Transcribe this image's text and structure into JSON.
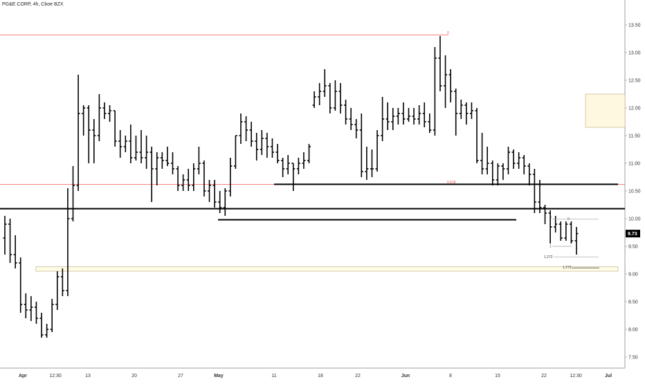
{
  "header": {
    "title": "PG&E CORP, 4h, Cboe BZX"
  },
  "chart_data": {
    "type": "ohlc",
    "ylim": [
      7.3,
      13.95
    ],
    "price_axis": {
      "ticks": [
        "7.50",
        "8.00",
        "8.50",
        "9.00",
        "9.50",
        "10.00",
        "10.50",
        "11.00",
        "11.50",
        "12.00",
        "12.50",
        "13.00",
        "13.50"
      ],
      "current_price_label": "9.73",
      "current_price": 9.73
    },
    "time_axis": {
      "labels": [
        "Apr",
        "12:30",
        "13",
        "20",
        "27",
        "May",
        "11",
        "18",
        "22",
        "Jun",
        "8",
        "15",
        "22",
        "12:30",
        "Jul"
      ],
      "bold_labels": [
        "Apr",
        "May",
        "Jun",
        "Jul"
      ]
    },
    "bars": [
      [
        9.65,
        10.05,
        9.35,
        9.9
      ],
      [
        9.9,
        10.0,
        9.2,
        9.35
      ],
      [
        9.35,
        9.7,
        9.1,
        9.2
      ],
      [
        9.2,
        9.3,
        8.3,
        8.45
      ],
      [
        8.45,
        8.65,
        8.2,
        8.35
      ],
      [
        8.35,
        8.6,
        8.15,
        8.4
      ],
      [
        8.4,
        8.5,
        8.1,
        8.2
      ],
      [
        8.2,
        8.3,
        7.85,
        7.9
      ],
      [
        7.9,
        8.1,
        7.85,
        8.0
      ],
      [
        8.0,
        8.55,
        7.95,
        8.45
      ],
      [
        8.45,
        9.05,
        8.35,
        8.95
      ],
      [
        8.95,
        9.1,
        8.6,
        8.7
      ],
      [
        8.7,
        10.55,
        8.6,
        10.0
      ],
      [
        10.0,
        10.95,
        9.95,
        10.6
      ],
      [
        10.6,
        12.6,
        10.5,
        11.9
      ],
      [
        11.9,
        12.05,
        11.5,
        12.0
      ],
      [
        12.0,
        12.05,
        11.0,
        11.6
      ],
      [
        11.6,
        11.8,
        11.0,
        11.5
      ],
      [
        11.5,
        12.25,
        11.4,
        12.0
      ],
      [
        12.0,
        12.1,
        11.8,
        11.9
      ],
      [
        11.9,
        12.05,
        11.75,
        11.95
      ],
      [
        11.95,
        11.95,
        11.3,
        11.4
      ],
      [
        11.4,
        11.6,
        11.1,
        11.3
      ],
      [
        11.3,
        11.5,
        11.2,
        11.4
      ],
      [
        11.4,
        11.7,
        11.0,
        11.1
      ],
      [
        11.1,
        11.5,
        11.05,
        11.2
      ],
      [
        11.2,
        11.6,
        11.0,
        11.1
      ],
      [
        11.1,
        11.5,
        10.9,
        11.2
      ],
      [
        11.2,
        11.3,
        10.3,
        10.9
      ],
      [
        10.9,
        11.2,
        10.6,
        11.1
      ],
      [
        11.1,
        11.2,
        10.9,
        11.05
      ],
      [
        11.05,
        11.3,
        10.95,
        11.0
      ],
      [
        11.0,
        11.2,
        10.8,
        10.9
      ],
      [
        10.9,
        10.95,
        10.5,
        10.6
      ],
      [
        10.6,
        10.8,
        10.5,
        10.7
      ],
      [
        10.7,
        10.9,
        10.5,
        10.6
      ],
      [
        10.6,
        11.0,
        10.5,
        10.9
      ],
      [
        10.9,
        11.3,
        10.8,
        11.0
      ],
      [
        11.0,
        11.05,
        10.4,
        10.5
      ],
      [
        10.5,
        10.7,
        10.3,
        10.6
      ],
      [
        10.6,
        10.7,
        10.2,
        10.3
      ],
      [
        10.3,
        10.5,
        10.1,
        10.2
      ],
      [
        10.2,
        10.55,
        10.05,
        10.5
      ],
      [
        10.5,
        11.1,
        10.4,
        10.95
      ],
      [
        10.95,
        11.5,
        10.9,
        11.5
      ],
      [
        11.5,
        11.9,
        11.35,
        11.75
      ],
      [
        11.75,
        11.85,
        11.4,
        11.6
      ],
      [
        11.6,
        11.75,
        11.3,
        11.4
      ],
      [
        11.4,
        11.55,
        11.05,
        11.25
      ],
      [
        11.25,
        11.6,
        11.15,
        11.45
      ],
      [
        11.45,
        11.55,
        11.1,
        11.3
      ],
      [
        11.3,
        11.45,
        11.1,
        11.2
      ],
      [
        11.2,
        11.35,
        11.0,
        11.05
      ],
      [
        11.05,
        11.1,
        10.75,
        10.9
      ],
      [
        10.9,
        11.15,
        10.8,
        11.0
      ],
      [
        11.0,
        11.0,
        10.5,
        10.9
      ],
      [
        10.9,
        11.1,
        10.8,
        11.0
      ],
      [
        11.0,
        11.2,
        10.9,
        11.05
      ],
      [
        11.05,
        11.35,
        11.0,
        11.3
      ],
      [
        12.05,
        12.3,
        12.0,
        12.2
      ],
      [
        12.2,
        12.45,
        12.05,
        12.3
      ],
      [
        12.3,
        12.7,
        12.2,
        12.4
      ],
      [
        12.4,
        12.45,
        11.9,
        12.0
      ],
      [
        12.0,
        12.5,
        11.95,
        12.3
      ],
      [
        12.3,
        12.45,
        11.9,
        12.05
      ],
      [
        12.05,
        12.15,
        11.7,
        11.8
      ],
      [
        11.8,
        12.0,
        11.6,
        11.7
      ],
      [
        11.7,
        11.8,
        11.45,
        11.6
      ],
      [
        11.6,
        11.9,
        10.75,
        10.85
      ],
      [
        10.85,
        11.3,
        10.7,
        10.9
      ],
      [
        10.9,
        11.25,
        10.75,
        10.9
      ],
      [
        10.9,
        11.6,
        10.85,
        11.5
      ],
      [
        11.5,
        12.2,
        11.4,
        11.8
      ],
      [
        11.8,
        12.1,
        11.6,
        11.75
      ],
      [
        11.75,
        12.0,
        11.6,
        11.85
      ],
      [
        11.85,
        12.0,
        11.7,
        11.9
      ],
      [
        11.9,
        12.1,
        11.7,
        11.8
      ],
      [
        11.8,
        12.0,
        11.75,
        11.85
      ],
      [
        11.85,
        12.0,
        11.7,
        11.8
      ],
      [
        11.8,
        12.05,
        11.7,
        11.9
      ],
      [
        11.9,
        12.1,
        11.65,
        11.75
      ],
      [
        11.75,
        11.9,
        11.55,
        11.6
      ],
      [
        11.6,
        13.1,
        11.5,
        12.9
      ],
      [
        12.9,
        13.3,
        12.3,
        12.4
      ],
      [
        12.4,
        12.95,
        12.0,
        12.6
      ],
      [
        12.6,
        12.7,
        12.1,
        12.3
      ],
      [
        12.3,
        12.35,
        11.5,
        11.9
      ],
      [
        11.9,
        12.15,
        11.8,
        12.05
      ],
      [
        12.05,
        12.1,
        11.7,
        11.9
      ],
      [
        11.9,
        12.1,
        11.8,
        11.95
      ],
      [
        11.95,
        12.0,
        11.0,
        11.05
      ],
      [
        11.05,
        11.55,
        10.8,
        10.9
      ],
      [
        10.9,
        11.3,
        10.8,
        11.0
      ],
      [
        11.0,
        11.05,
        10.6,
        10.7
      ],
      [
        10.7,
        11.0,
        10.6,
        10.95
      ],
      [
        10.95,
        11.0,
        10.7,
        10.9
      ],
      [
        10.9,
        11.3,
        10.8,
        11.2
      ],
      [
        11.2,
        11.25,
        10.9,
        11.0
      ],
      [
        11.0,
        11.2,
        10.9,
        11.1
      ],
      [
        11.1,
        11.15,
        10.8,
        10.95
      ],
      [
        10.95,
        11.0,
        10.6,
        10.8
      ],
      [
        10.8,
        10.9,
        10.1,
        10.3
      ],
      [
        10.3,
        10.7,
        10.1,
        10.2
      ],
      [
        10.2,
        10.25,
        9.9,
        10.1
      ],
      [
        10.1,
        10.15,
        9.55,
        9.85
      ],
      [
        9.85,
        10.05,
        9.75,
        9.9
      ],
      [
        9.9,
        9.95,
        9.6,
        9.65
      ],
      [
        9.65,
        9.95,
        9.6,
        9.9
      ],
      [
        9.9,
        9.95,
        9.55,
        9.6
      ],
      [
        9.6,
        9.85,
        9.35,
        9.73
      ]
    ],
    "horizontal_levels": [
      {
        "price": 13.32,
        "color": "#ef5350",
        "label": "0"
      },
      {
        "price": 10.62,
        "color": "#ef5350",
        "label": "0.618"
      },
      {
        "price": 10.62,
        "color": "#000000"
      },
      {
        "price": 10.18,
        "color": "#000000"
      },
      {
        "price": 9.98,
        "color": "#000000"
      }
    ],
    "zone_boxes": [
      {
        "price_top": 12.25,
        "price_bottom": 11.65,
        "color": "#fff8e1"
      },
      {
        "price_top": 9.13,
        "price_bottom": 9.05,
        "color": "#fffde7"
      }
    ],
    "projection": {
      "labels": {
        "top": "0",
        "mid": "1",
        "ext": "1.272",
        "ext2": "1.272"
      },
      "prices": {
        "top": 9.99,
        "mid": 9.5,
        "ext": 9.31,
        "ext2": 9.11
      }
    }
  }
}
